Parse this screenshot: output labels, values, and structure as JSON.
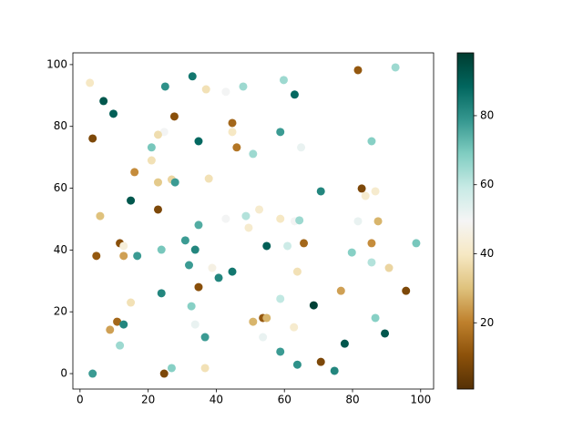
{
  "chart_data": {
    "type": "scatter",
    "x": [
      2.9,
      6.9,
      9.8,
      3.7,
      25,
      33,
      37,
      42.8,
      47.9,
      63,
      81.6,
      92.6,
      27.7,
      44.7,
      59.8,
      24.7,
      22.9,
      44.7,
      21,
      34.8,
      46,
      58.8,
      64.9,
      85.6,
      50.8,
      21,
      16,
      26.9,
      22.9,
      27.9,
      37.8,
      14.9,
      70.7,
      82.7,
      83.8,
      86.7,
      5.9,
      22.9,
      42.8,
      48.7,
      52.6,
      58.8,
      63,
      64.4,
      34.8,
      49.5,
      81.6,
      87.5,
      11.7,
      12.8,
      4.8,
      12.8,
      16.8,
      23.9,
      30.9,
      33.8,
      54.8,
      60.9,
      65.7,
      85.6,
      98.7,
      79.8,
      32,
      38.8,
      44.7,
      40.7,
      63.8,
      85.6,
      90.7,
      34.8,
      23.9,
      14.9,
      32.7,
      58.8,
      68.6,
      76.6,
      95.7,
      8.8,
      10.9,
      12.8,
      11.7,
      33.8,
      36.7,
      50.8,
      53.7,
      54.8,
      53.7,
      62.8,
      86.7,
      89.5,
      77.7,
      3.7,
      24.7,
      26.9,
      36.7,
      58.8,
      63.8,
      70.7,
      74.7
    ],
    "values": [
      94.1,
      88.2,
      84.1,
      76.1,
      92.9,
      96.2,
      92,
      91.2,
      92.9,
      90.3,
      98.2,
      99.1,
      83.2,
      81.1,
      95,
      78.2,
      77.3,
      78.2,
      73.2,
      75.2,
      73.2,
      78.2,
      73.2,
      75.2,
      71.1,
      69,
      65.2,
      62.8,
      61.9,
      61.9,
      63.1,
      56,
      59,
      59.9,
      57.5,
      59,
      51,
      53.1,
      50.1,
      51,
      53.1,
      50.1,
      49.3,
      49.6,
      48.1,
      47.2,
      49.3,
      49.3,
      42.2,
      41.3,
      38.1,
      38.1,
      38.1,
      40.1,
      43.1,
      40.1,
      41.3,
      41.3,
      42.2,
      42.2,
      42.2,
      39.2,
      35.1,
      34.2,
      33,
      31,
      33,
      36,
      34.2,
      28,
      26,
      23,
      21.8,
      24.2,
      22.1,
      26.8,
      26.8,
      14.2,
      16.8,
      15.9,
      9.1,
      15.9,
      11.8,
      16.8,
      18,
      18,
      11.8,
      15,
      18,
      13,
      9.7,
      0,
      0,
      1.8,
      1.8,
      7.1,
      2.9,
      3.8,
      0.9
    ],
    "c": [
      40,
      92,
      90,
      8,
      80,
      85,
      38,
      50,
      65,
      88,
      12,
      65,
      10,
      15,
      65,
      50,
      37,
      40,
      70,
      88,
      18,
      78,
      52,
      68,
      65,
      38,
      22,
      35,
      32,
      78,
      38,
      92,
      82,
      8,
      42,
      42,
      30,
      8,
      50,
      62,
      42,
      40,
      50,
      65,
      75,
      42,
      52,
      28,
      10,
      44,
      12,
      25,
      78,
      70,
      78,
      82,
      90,
      58,
      15,
      22,
      70,
      68,
      78,
      46,
      85,
      82,
      38,
      62,
      35,
      10,
      82,
      38,
      68,
      60,
      97,
      25,
      8,
      25,
      15,
      82,
      65,
      52,
      78,
      28,
      12,
      28,
      52,
      42,
      68,
      92,
      92,
      78,
      8,
      68,
      38,
      78,
      80,
      8,
      82
    ],
    "colormap": "BrBG",
    "xlim": [
      -2.1,
      103.8
    ],
    "ylim": [
      -5,
      103.8
    ],
    "clim": [
      0.8,
      98.2
    ],
    "xticks": [
      0,
      20,
      40,
      60,
      80,
      100
    ],
    "yticks": [
      0,
      20,
      40,
      60,
      80,
      100
    ],
    "cticks": [
      20,
      40,
      60,
      80
    ]
  }
}
